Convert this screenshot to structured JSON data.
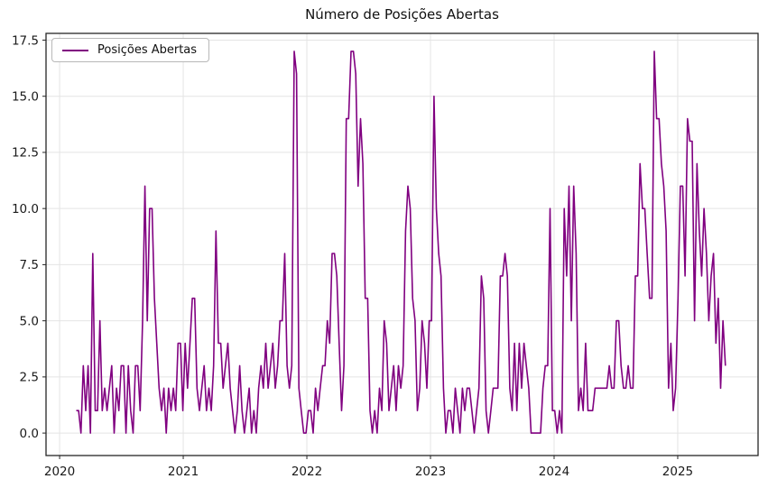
{
  "chart_data": {
    "type": "line",
    "title": "Número de Posições Abertas",
    "legend_label": "Posições Abertas",
    "legend_position": "upper left",
    "grid": true,
    "xlabel": "",
    "ylabel": "",
    "x_tick_labels": [
      "2020",
      "2021",
      "2022",
      "2023",
      "2024",
      "2025"
    ],
    "x_tick_years": [
      2020,
      2021,
      2022,
      2023,
      2024,
      2025
    ],
    "y_tick_labels": [
      "0.0",
      "2.5",
      "5.0",
      "7.5",
      "10.0",
      "12.5",
      "15.0",
      "17.5"
    ],
    "y_tick_values": [
      0,
      2.5,
      5,
      7.5,
      10,
      12.5,
      15,
      17.5
    ],
    "xlim": [
      2019.89,
      2025.65
    ],
    "ylim": [
      -1.0,
      17.8
    ],
    "colors": {
      "line": "#800080",
      "grid": "#e4e4e4",
      "spine": "#262626",
      "text": "#1a1a1a"
    },
    "series": [
      {
        "name": "Posições Abertas",
        "x_start_year": 2020.1342,
        "x_step_years": 0.019165,
        "values": [
          1,
          1,
          0,
          3,
          1,
          3,
          0,
          8,
          1,
          1,
          5,
          1,
          2,
          1,
          2,
          3,
          0,
          2,
          1,
          3,
          3,
          0,
          3,
          1,
          0,
          3,
          3,
          1,
          5,
          11,
          5,
          10,
          10,
          6,
          4,
          2,
          1,
          2,
          0,
          2,
          1,
          2,
          1,
          4,
          4,
          1,
          4,
          2,
          4,
          6,
          6,
          2,
          1,
          2,
          3,
          1,
          2,
          1,
          3,
          9,
          4,
          4,
          2,
          3,
          4,
          2,
          1,
          0,
          1,
          3,
          1,
          0,
          1,
          2,
          0,
          1,
          0,
          2,
          3,
          2,
          4,
          2,
          3,
          4,
          2,
          3,
          5,
          5,
          8,
          3,
          2,
          3,
          17,
          16,
          2,
          1,
          0,
          0,
          1,
          1,
          0,
          2,
          1,
          2,
          3,
          3,
          5,
          4,
          8,
          8,
          7,
          4,
          1,
          3,
          14,
          14,
          17,
          17,
          16,
          11,
          14,
          12,
          6,
          6,
          1,
          0,
          1,
          0,
          2,
          1,
          5,
          4,
          1,
          2,
          3,
          1,
          3,
          2,
          3,
          9,
          11,
          10,
          6,
          5,
          1,
          2,
          5,
          4,
          2,
          5,
          5,
          15,
          10,
          8,
          7,
          2,
          0,
          1,
          1,
          0,
          2,
          1,
          0,
          2,
          1,
          2,
          2,
          1,
          0,
          1,
          2,
          7,
          6,
          1,
          0,
          1,
          2,
          2,
          2,
          7,
          7,
          8,
          7,
          2,
          1,
          4,
          1,
          4,
          2,
          4,
          3,
          2,
          0,
          0,
          0,
          0,
          0,
          2,
          3,
          3,
          10,
          1,
          1,
          0,
          1,
          0,
          10,
          7,
          11,
          5,
          11,
          8,
          1,
          2,
          1,
          4,
          1,
          1,
          1,
          2,
          2,
          2,
          2,
          2,
          2,
          3,
          2,
          2,
          5,
          5,
          3,
          2,
          2,
          3,
          2,
          2,
          7,
          7,
          12,
          10,
          10,
          8,
          6,
          6,
          17,
          14,
          14,
          12,
          11,
          9,
          2,
          4,
          1,
          2,
          6,
          11,
          11,
          7,
          14,
          13,
          13,
          5,
          12,
          9,
          7,
          10,
          8,
          5,
          7,
          8,
          4,
          6,
          2,
          5,
          3
        ]
      }
    ]
  }
}
